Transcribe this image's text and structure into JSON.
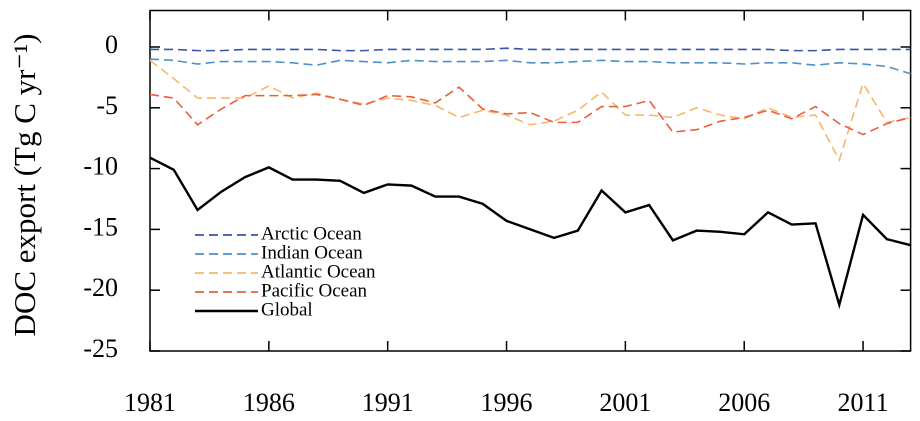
{
  "chart_data": {
    "type": "line",
    "ylabel": "DOC export (Tg C yr⁻¹)",
    "x": [
      1981,
      1982,
      1983,
      1984,
      1985,
      1986,
      1987,
      1988,
      1989,
      1990,
      1991,
      1992,
      1993,
      1994,
      1995,
      1996,
      1997,
      1998,
      1999,
      2000,
      2001,
      2002,
      2003,
      2004,
      2005,
      2006,
      2007,
      2008,
      2009,
      2010,
      2011,
      2012,
      2013
    ],
    "xlim": [
      1981,
      2013
    ],
    "xticks": [
      1981,
      1986,
      1991,
      1996,
      2001,
      2006,
      2011
    ],
    "ylim": [
      -25,
      3
    ],
    "yticks": [
      0,
      -5,
      -10,
      -15,
      -20,
      -25
    ],
    "series": [
      {
        "name": "Arctic Ocean",
        "color": "#3a55a4",
        "style": "dashed",
        "values": [
          -0.2,
          -0.2,
          -0.3,
          -0.3,
          -0.2,
          -0.2,
          -0.2,
          -0.2,
          -0.3,
          -0.3,
          -0.2,
          -0.2,
          -0.2,
          -0.2,
          -0.2,
          -0.1,
          -0.2,
          -0.2,
          -0.2,
          -0.2,
          -0.2,
          -0.2,
          -0.2,
          -0.2,
          -0.2,
          -0.2,
          -0.2,
          -0.3,
          -0.3,
          -0.2,
          -0.2,
          -0.2,
          -0.2
        ]
      },
      {
        "name": "Indian Ocean",
        "color": "#4f90c9",
        "style": "dashed",
        "values": [
          -1.0,
          -1.1,
          -1.4,
          -1.2,
          -1.2,
          -1.2,
          -1.3,
          -1.5,
          -1.1,
          -1.2,
          -1.3,
          -1.1,
          -1.2,
          -1.2,
          -1.2,
          -1.1,
          -1.3,
          -1.3,
          -1.2,
          -1.1,
          -1.2,
          -1.2,
          -1.3,
          -1.3,
          -1.3,
          -1.4,
          -1.3,
          -1.3,
          -1.5,
          -1.3,
          -1.4,
          -1.6,
          -2.2
        ]
      },
      {
        "name": "Atlantic Ocean",
        "color": "#f5b86b",
        "style": "dashed",
        "values": [
          -1.1,
          -2.6,
          -4.2,
          -4.2,
          -4.2,
          -3.2,
          -4.2,
          -3.8,
          -4.3,
          -4.7,
          -4.2,
          -4.4,
          -4.8,
          -5.8,
          -5.2,
          -5.6,
          -6.4,
          -6.1,
          -5.2,
          -3.7,
          -5.6,
          -5.6,
          -5.8,
          -5.0,
          -5.6,
          -5.9,
          -5.0,
          -5.8,
          -5.6,
          -9.3,
          -3.0,
          -6.2,
          -5.8
        ]
      },
      {
        "name": "Pacific Ocean",
        "color": "#e8603c",
        "style": "dashed",
        "values": [
          -3.9,
          -4.2,
          -6.4,
          -5.1,
          -4.0,
          -4.0,
          -4.0,
          -3.9,
          -4.3,
          -4.8,
          -4.0,
          -4.1,
          -4.6,
          -3.3,
          -5.1,
          -5.5,
          -5.4,
          -6.2,
          -6.2,
          -4.9,
          -4.9,
          -4.4,
          -7.0,
          -6.8,
          -6.1,
          -5.8,
          -5.2,
          -5.9,
          -4.9,
          -6.3,
          -7.2,
          -6.3,
          -5.8
        ]
      },
      {
        "name": "Global",
        "color": "#000000",
        "style": "solid",
        "values": [
          -9.1,
          -10.1,
          -13.4,
          -11.9,
          -10.7,
          -9.9,
          -10.9,
          -10.9,
          -11.0,
          -12.0,
          -11.3,
          -11.4,
          -12.3,
          -12.3,
          -12.9,
          -14.3,
          -15.0,
          -15.7,
          -15.1,
          -11.8,
          -13.6,
          -13.0,
          -15.9,
          -15.1,
          -15.2,
          -15.4,
          -13.6,
          -14.6,
          -14.5,
          -21.2,
          -13.8,
          -15.8,
          -16.3
        ]
      }
    ]
  }
}
